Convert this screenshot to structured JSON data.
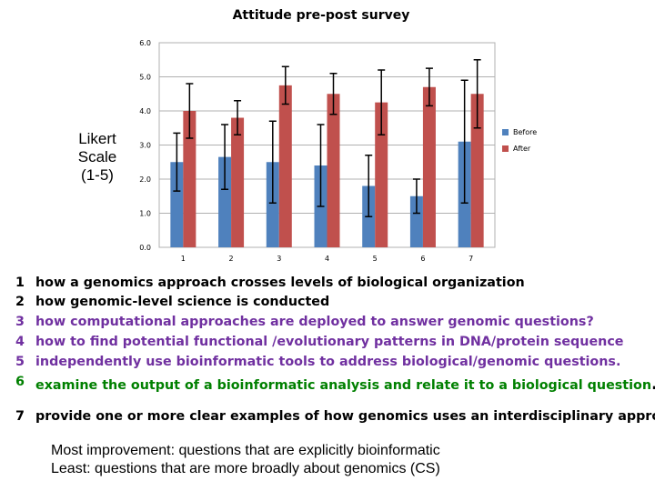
{
  "chart_data": {
    "type": "bar",
    "title": "Attitude pre-post survey",
    "ylabel": "Likert Scale (1-5)",
    "ylabel_lines": [
      "Likert",
      "Scale",
      "(1-5)"
    ],
    "xlabel": "",
    "categories": [
      "1",
      "2",
      "3",
      "4",
      "5",
      "6",
      "7"
    ],
    "ylim": [
      0,
      6
    ],
    "yticks": [
      "0.0",
      "1.0",
      "2.0",
      "3.0",
      "4.0",
      "5.0",
      "6.0"
    ],
    "grid": "horizontal",
    "legend_position": "right",
    "series": [
      {
        "name": "Before",
        "color": "#4f81bd",
        "values": [
          2.5,
          2.65,
          2.5,
          2.4,
          1.8,
          1.5,
          3.1
        ],
        "error": [
          0.85,
          0.95,
          1.2,
          1.2,
          0.9,
          0.5,
          1.8
        ]
      },
      {
        "name": "After",
        "color": "#c0504d",
        "values": [
          4.0,
          3.8,
          4.75,
          4.5,
          4.25,
          4.7,
          4.5
        ],
        "error": [
          0.8,
          0.5,
          0.55,
          0.6,
          0.95,
          0.55,
          1.0
        ]
      }
    ]
  },
  "items": [
    {
      "num": "1",
      "text": "how a genomics approach crosses levels of biological organization",
      "color": "#000000"
    },
    {
      "num": "2",
      "text": "how genomic-level science is conducted",
      "color": "#000000"
    },
    {
      "num": "3",
      "text": " how computational approaches are deployed to answer genomic questions?",
      "color": "#7030a0"
    },
    {
      "num": "4",
      "text": "how to find potential functional /evolutionary patterns in DNA/protein sequence",
      "color": "#7030a0"
    },
    {
      "num": "5",
      "text": "independently use bioinformatic tools to address biological/genomic questions.",
      "color": "#7030a0"
    },
    {
      "num": "6",
      "text": "examine the output of a bioinformatic analysis and relate it to a biological question",
      "color": "#008000"
    },
    {
      "num": "7",
      "text": "provide one or more clear examples of how genomics uses an interdisciplinary approach",
      "color": "#000000"
    }
  ],
  "item_six_end": ".",
  "summary": {
    "most": "Most improvement: questions that are explicitly bioinformatic",
    "least": "Least: questions that are more broadly about genomics (CS)"
  }
}
